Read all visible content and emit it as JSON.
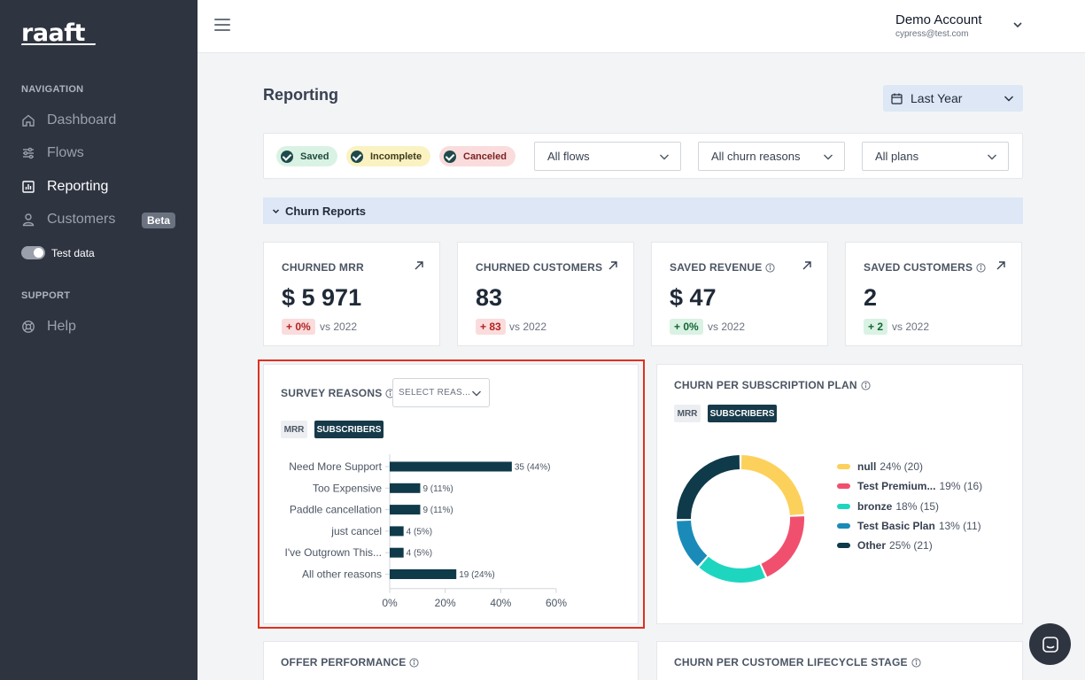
{
  "app": {
    "logo": "raaft"
  },
  "sidebar": {
    "navigation_heading": "NAVIGATION",
    "items": [
      {
        "label": "Dashboard",
        "icon": "home-icon"
      },
      {
        "label": "Flows",
        "icon": "sliders-icon"
      },
      {
        "label": "Reporting",
        "icon": "chart-icon",
        "active": true
      },
      {
        "label": "Customers",
        "icon": "user-icon",
        "badge": "Beta"
      }
    ],
    "test_data_label": "Test data",
    "support_heading": "SUPPORT",
    "help_label": "Help"
  },
  "header": {
    "account_name": "Demo Account",
    "account_email": "cypress@test.com"
  },
  "page": {
    "title": "Reporting",
    "date_range": "Last Year"
  },
  "filters": {
    "statuses": [
      "Saved",
      "Incomplete",
      "Canceled"
    ],
    "flows": "All flows",
    "reasons": "All churn reasons",
    "plans": "All plans"
  },
  "section": {
    "churn_reports": "Churn Reports"
  },
  "kpis": [
    {
      "label": "CHURNED MRR",
      "value": "$ 5 971",
      "delta": "+ 0%",
      "delta_tone": "red",
      "vs": "vs 2022",
      "info": false
    },
    {
      "label": "CHURNED CUSTOMERS",
      "value": "83",
      "delta": "+ 83",
      "delta_tone": "red",
      "vs": "vs 2022",
      "info": false
    },
    {
      "label": "SAVED REVENUE",
      "value": "$ 47",
      "delta": "+ 0%",
      "delta_tone": "green",
      "vs": "vs 2022",
      "info": true
    },
    {
      "label": "SAVED CUSTOMERS",
      "value": "2",
      "delta": "+ 2",
      "delta_tone": "green",
      "vs": "vs 2022",
      "info": true
    }
  ],
  "survey": {
    "title": "SURVEY REASONS",
    "select_placeholder": "SELECT REAS...",
    "toggle_mrr": "MRR",
    "toggle_subscribers": "SUBSCRIBERS"
  },
  "plan_panel": {
    "title": "CHURN PER SUBSCRIPTION PLAN",
    "toggle_mrr": "MRR",
    "toggle_subscribers": "SUBSCRIBERS"
  },
  "bottom_panels": {
    "offer_performance": "OFFER PERFORMANCE",
    "lifecycle_stage": "CHURN PER CUSTOMER LIFECYCLE STAGE"
  },
  "colors": {
    "bar": "#0f3a4a",
    "null": "#fcd15b",
    "test_premium": "#f0506e",
    "bronze": "#1ed6c0",
    "test_basic": "#1a8bb8",
    "other": "#0f3a4a"
  },
  "chart_data": [
    {
      "type": "bar",
      "orientation": "horizontal",
      "categories": [
        "Need More Support",
        "Too Expensive",
        "Paddle cancellation",
        "just cancel",
        "I've Outgrown This...",
        "All other reasons"
      ],
      "values": [
        35,
        9,
        9,
        4,
        4,
        19
      ],
      "percents": [
        44,
        11,
        11,
        5,
        5,
        24
      ],
      "data_labels": [
        "35 (44%)",
        "9 (11%)",
        "9 (11%)",
        "4 (5%)",
        "4 (5%)",
        "19 (24%)"
      ],
      "xlim": [
        0,
        60
      ],
      "xticks": [
        "0%",
        "20%",
        "40%",
        "60%"
      ],
      "xtick_values": [
        0,
        20,
        40,
        60
      ]
    },
    {
      "type": "pie",
      "donut": true,
      "slices": [
        {
          "name": "null",
          "percent": 24,
          "count": 20,
          "label": "24% (20)",
          "color_key": "null"
        },
        {
          "name": "Test Premium...",
          "percent": 19,
          "count": 16,
          "label": "19% (16)",
          "color_key": "test_premium"
        },
        {
          "name": "bronze",
          "percent": 18,
          "count": 15,
          "label": "18% (15)",
          "color_key": "bronze"
        },
        {
          "name": "Test Basic Plan",
          "percent": 13,
          "count": 11,
          "label": "13% (11)",
          "color_key": "test_basic"
        },
        {
          "name": "Other",
          "percent": 25,
          "count": 21,
          "label": "25% (21)",
          "color_key": "other"
        }
      ],
      "legend_position": "right"
    }
  ]
}
